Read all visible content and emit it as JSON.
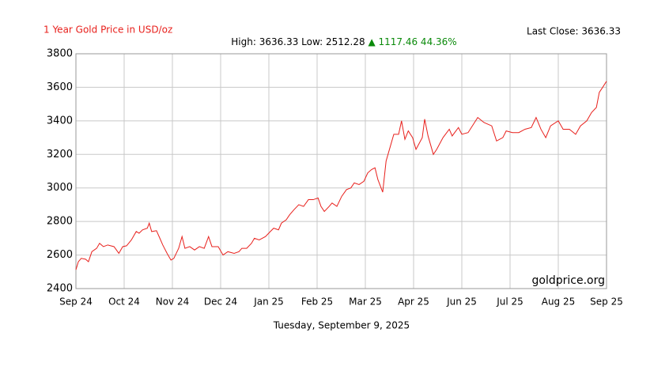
{
  "chart_data": {
    "type": "line",
    "title": "1 Year Gold Price in USD/oz",
    "last_close": "Last Close: 3636.33",
    "stats": {
      "high_low": "High: 3636.33 Low: 2512.28",
      "change": "▲ 1117.46 44.36%"
    },
    "watermark": "goldprice.org",
    "date": "Tuesday, September 9, 2025",
    "x": [
      0,
      0.05,
      0.11,
      0.2,
      0.26,
      0.33,
      0.43,
      0.49,
      0.57,
      0.66,
      0.79,
      0.89,
      0.97,
      1.05,
      1.15,
      1.25,
      1.31,
      1.38,
      1.48,
      1.52,
      1.57,
      1.67,
      1.74,
      1.8,
      1.89,
      1.97,
      2.03,
      2.13,
      2.2,
      2.26,
      2.36,
      2.46,
      2.56,
      2.66,
      2.75,
      2.82,
      2.95,
      3.05,
      3.15,
      3.28,
      3.38,
      3.44,
      3.54,
      3.64,
      3.7,
      3.8,
      3.93,
      4.03,
      4.1,
      4.2,
      4.26,
      4.36,
      4.43,
      4.52,
      4.62,
      4.72,
      4.82,
      4.92,
      5.02,
      5.08,
      5.15,
      5.25,
      5.31,
      5.41,
      5.51,
      5.61,
      5.7,
      5.77,
      5.87,
      5.97,
      6.05,
      6.13,
      6.2,
      6.26,
      6.36,
      6.43,
      6.52,
      6.59,
      6.69,
      6.75,
      6.82,
      6.89,
      6.98,
      7.05,
      7.18,
      7.23,
      7.3,
      7.41,
      7.48,
      7.61,
      7.74,
      7.8,
      7.93,
      8.0,
      8.13,
      8.33,
      8.46,
      8.62,
      8.72,
      8.85,
      8.92,
      9.05,
      9.18,
      9.31,
      9.44,
      9.54,
      9.64,
      9.74,
      9.84,
      10.0,
      10.1,
      10.23,
      10.36,
      10.46,
      10.59,
      10.69,
      10.79,
      10.85,
      10.92,
      11
    ],
    "series": [
      {
        "name": "Gold",
        "color": "#e8201c",
        "values": [
          2512.28,
          2560,
          2580,
          2575,
          2560,
          2620,
          2640,
          2670,
          2650,
          2660,
          2650,
          2610,
          2650,
          2655,
          2690,
          2740,
          2730,
          2750,
          2760,
          2790,
          2740,
          2745,
          2700,
          2660,
          2610,
          2570,
          2580,
          2640,
          2710,
          2640,
          2650,
          2630,
          2650,
          2640,
          2710,
          2650,
          2650,
          2600,
          2620,
          2610,
          2620,
          2640,
          2640,
          2670,
          2700,
          2690,
          2710,
          2740,
          2760,
          2750,
          2790,
          2810,
          2840,
          2870,
          2900,
          2890,
          2930,
          2930,
          2940,
          2890,
          2860,
          2890,
          2910,
          2890,
          2950,
          2990,
          3000,
          3030,
          3020,
          3040,
          3090,
          3110,
          3120,
          3050,
          2975,
          3160,
          3250,
          3320,
          3320,
          3400,
          3290,
          3340,
          3300,
          3230,
          3300,
          3410,
          3310,
          3200,
          3230,
          3300,
          3350,
          3310,
          3360,
          3320,
          3330,
          3420,
          3390,
          3370,
          3280,
          3300,
          3340,
          3330,
          3330,
          3350,
          3360,
          3420,
          3350,
          3300,
          3370,
          3400,
          3350,
          3350,
          3320,
          3370,
          3400,
          3450,
          3480,
          3570,
          3600,
          3636.33
        ]
      }
    ],
    "xlim": [
      0,
      11
    ],
    "xticks": [
      {
        "value": 0,
        "label": "Sep 24"
      },
      {
        "value": 1,
        "label": "Oct 24"
      },
      {
        "value": 2,
        "label": "Nov 24"
      },
      {
        "value": 3,
        "label": "Dec 24"
      },
      {
        "value": 4,
        "label": "Jan 25"
      },
      {
        "value": 5,
        "label": "Feb 25"
      },
      {
        "value": 6,
        "label": "Mar 25"
      },
      {
        "value": 7,
        "label": "Apr 25"
      },
      {
        "value": 8,
        "label": "Jun 25"
      },
      {
        "value": 9,
        "label": "Jul 25"
      },
      {
        "value": 10,
        "label": "Aug 25"
      },
      {
        "value": 11,
        "label": "Sep 25"
      }
    ],
    "ylim": [
      2400,
      3800
    ],
    "yticks": [
      2400,
      2600,
      2800,
      3000,
      3200,
      3400,
      3600,
      3800
    ],
    "grid": true
  }
}
